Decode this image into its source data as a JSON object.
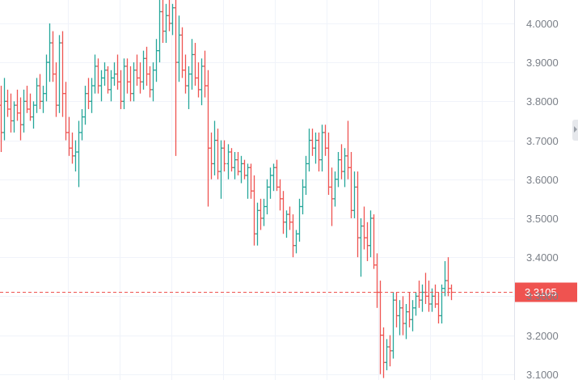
{
  "chart_data": {
    "type": "ohlc",
    "title": "",
    "xlabel": "",
    "ylabel": "",
    "ylim": [
      3.085,
      4.06
    ],
    "grid": true,
    "y_ticks": [
      "4.0000",
      "3.9000",
      "3.8000",
      "3.7000",
      "3.6000",
      "3.5000",
      "3.4000",
      "3.3000",
      "3.2000",
      "3.1000"
    ],
    "last_price": 3.3105,
    "last_price_label": "3.3105",
    "colors": {
      "up": "#26a69a",
      "down": "#ef5350",
      "grid": "#f0f3fa",
      "tick_text": "#7a7f87",
      "last_price": "#ef5350"
    },
    "ohlc": [
      [
        3.79,
        3.84,
        3.67,
        3.72
      ],
      [
        3.72,
        3.86,
        3.7,
        3.8
      ],
      [
        3.8,
        3.83,
        3.76,
        3.78
      ],
      [
        3.78,
        3.82,
        3.72,
        3.75
      ],
      [
        3.75,
        3.8,
        3.72,
        3.79
      ],
      [
        3.79,
        3.83,
        3.75,
        3.77
      ],
      [
        3.77,
        3.81,
        3.7,
        3.74
      ],
      [
        3.74,
        3.83,
        3.72,
        3.8
      ],
      [
        3.8,
        3.84,
        3.77,
        3.78
      ],
      [
        3.78,
        3.82,
        3.75,
        3.76
      ],
      [
        3.76,
        3.8,
        3.73,
        3.79
      ],
      [
        3.79,
        3.86,
        3.77,
        3.84
      ],
      [
        3.84,
        3.87,
        3.78,
        3.8
      ],
      [
        3.8,
        3.84,
        3.77,
        3.82
      ],
      [
        3.82,
        3.92,
        3.8,
        3.9
      ],
      [
        3.9,
        4.0,
        3.85,
        3.95
      ],
      [
        3.95,
        3.98,
        3.85,
        3.87
      ],
      [
        3.87,
        3.9,
        3.76,
        3.79
      ],
      [
        3.79,
        3.97,
        3.77,
        3.95
      ],
      [
        3.95,
        3.98,
        3.76,
        3.82
      ],
      [
        3.82,
        3.85,
        3.7,
        3.72
      ],
      [
        3.72,
        3.76,
        3.66,
        3.68
      ],
      [
        3.68,
        3.72,
        3.64,
        3.66
      ],
      [
        3.66,
        3.7,
        3.62,
        3.67
      ],
      [
        3.67,
        3.75,
        3.58,
        3.72
      ],
      [
        3.72,
        3.78,
        3.7,
        3.76
      ],
      [
        3.76,
        3.84,
        3.74,
        3.82
      ],
      [
        3.82,
        3.86,
        3.78,
        3.8
      ],
      [
        3.8,
        3.86,
        3.77,
        3.84
      ],
      [
        3.84,
        3.92,
        3.82,
        3.89
      ],
      [
        3.89,
        3.91,
        3.82,
        3.84
      ],
      [
        3.84,
        3.88,
        3.8,
        3.86
      ],
      [
        3.86,
        3.9,
        3.84,
        3.88
      ],
      [
        3.88,
        3.89,
        3.82,
        3.83
      ],
      [
        3.83,
        3.88,
        3.8,
        3.86
      ],
      [
        3.86,
        3.9,
        3.84,
        3.87
      ],
      [
        3.87,
        3.92,
        3.83,
        3.85
      ],
      [
        3.85,
        3.88,
        3.78,
        3.8
      ],
      [
        3.8,
        3.91,
        3.78,
        3.89
      ],
      [
        3.89,
        3.91,
        3.82,
        3.85
      ],
      [
        3.85,
        3.89,
        3.8,
        3.82
      ],
      [
        3.82,
        3.9,
        3.8,
        3.88
      ],
      [
        3.88,
        3.92,
        3.84,
        3.86
      ],
      [
        3.86,
        3.9,
        3.82,
        3.85
      ],
      [
        3.85,
        3.93,
        3.83,
        3.91
      ],
      [
        3.91,
        3.94,
        3.84,
        3.87
      ],
      [
        3.87,
        3.89,
        3.81,
        3.83
      ],
      [
        3.83,
        3.9,
        3.8,
        3.88
      ],
      [
        3.88,
        3.96,
        3.85,
        3.93
      ],
      [
        3.93,
        4.06,
        3.9,
        4.03
      ],
      [
        4.03,
        4.06,
        3.95,
        3.98
      ],
      [
        3.98,
        4.05,
        3.95,
        4.02
      ],
      [
        4.02,
        4.06,
        3.98,
        4.0
      ],
      [
        4.0,
        4.05,
        3.97,
        4.04
      ],
      [
        4.04,
        4.06,
        3.66,
        3.9
      ],
      [
        3.9,
        4.02,
        3.85,
        3.97
      ],
      [
        3.97,
        3.99,
        3.86,
        3.88
      ],
      [
        3.88,
        3.92,
        3.82,
        3.84
      ],
      [
        3.84,
        3.89,
        3.78,
        3.87
      ],
      [
        3.87,
        3.96,
        3.83,
        3.92
      ],
      [
        3.92,
        3.95,
        3.84,
        3.86
      ],
      [
        3.86,
        3.9,
        3.81,
        3.83
      ],
      [
        3.83,
        3.91,
        3.79,
        3.89
      ],
      [
        3.89,
        3.93,
        3.81,
        3.84
      ],
      [
        3.84,
        3.88,
        3.53,
        3.68
      ],
      [
        3.68,
        3.72,
        3.6,
        3.64
      ],
      [
        3.64,
        3.75,
        3.61,
        3.7
      ],
      [
        3.7,
        3.73,
        3.6,
        3.62
      ],
      [
        3.62,
        3.7,
        3.55,
        3.68
      ],
      [
        3.68,
        3.7,
        3.62,
        3.64
      ],
      [
        3.64,
        3.69,
        3.6,
        3.67
      ],
      [
        3.67,
        3.68,
        3.62,
        3.63
      ],
      [
        3.63,
        3.67,
        3.6,
        3.65
      ],
      [
        3.65,
        3.67,
        3.61,
        3.62
      ],
      [
        3.62,
        3.66,
        3.59,
        3.64
      ],
      [
        3.64,
        3.65,
        3.6,
        3.61
      ],
      [
        3.61,
        3.64,
        3.55,
        3.63
      ],
      [
        3.63,
        3.64,
        3.55,
        3.57
      ],
      [
        3.57,
        3.61,
        3.43,
        3.46
      ],
      [
        3.46,
        3.54,
        3.43,
        3.52
      ],
      [
        3.52,
        3.55,
        3.47,
        3.5
      ],
      [
        3.5,
        3.55,
        3.48,
        3.53
      ],
      [
        3.53,
        3.6,
        3.51,
        3.58
      ],
      [
        3.58,
        3.63,
        3.55,
        3.61
      ],
      [
        3.61,
        3.64,
        3.57,
        3.63
      ],
      [
        3.63,
        3.65,
        3.57,
        3.58
      ],
      [
        3.58,
        3.6,
        3.52,
        3.55
      ],
      [
        3.55,
        3.57,
        3.46,
        3.49
      ],
      [
        3.49,
        3.52,
        3.45,
        3.51
      ],
      [
        3.51,
        3.53,
        3.47,
        3.49
      ],
      [
        3.49,
        3.51,
        3.4,
        3.43
      ],
      [
        3.43,
        3.47,
        3.41,
        3.46
      ],
      [
        3.46,
        3.55,
        3.44,
        3.53
      ],
      [
        3.53,
        3.6,
        3.51,
        3.58
      ],
      [
        3.58,
        3.66,
        3.56,
        3.64
      ],
      [
        3.64,
        3.73,
        3.62,
        3.7
      ],
      [
        3.7,
        3.73,
        3.66,
        3.68
      ],
      [
        3.68,
        3.72,
        3.64,
        3.7
      ],
      [
        3.7,
        3.72,
        3.62,
        3.65
      ],
      [
        3.65,
        3.74,
        3.62,
        3.72
      ],
      [
        3.72,
        3.74,
        3.66,
        3.68
      ],
      [
        3.68,
        3.72,
        3.56,
        3.58
      ],
      [
        3.58,
        3.63,
        3.48,
        3.55
      ],
      [
        3.55,
        3.62,
        3.53,
        3.6
      ],
      [
        3.6,
        3.67,
        3.58,
        3.65
      ],
      [
        3.65,
        3.69,
        3.6,
        3.62
      ],
      [
        3.62,
        3.68,
        3.58,
        3.66
      ],
      [
        3.66,
        3.75,
        3.6,
        3.63
      ],
      [
        3.63,
        3.67,
        3.5,
        3.52
      ],
      [
        3.52,
        3.62,
        3.5,
        3.58
      ],
      [
        3.58,
        3.62,
        3.4,
        3.45
      ],
      [
        3.45,
        3.5,
        3.35,
        3.48
      ],
      [
        3.48,
        3.53,
        3.42,
        3.45
      ],
      [
        3.45,
        3.49,
        3.39,
        3.43
      ],
      [
        3.43,
        3.52,
        3.4,
        3.5
      ],
      [
        3.5,
        3.51,
        3.37,
        3.38
      ],
      [
        3.38,
        3.41,
        3.27,
        3.31
      ],
      [
        3.31,
        3.34,
        3.1,
        3.2
      ],
      [
        3.2,
        3.22,
        3.09,
        3.13
      ],
      [
        3.13,
        3.19,
        3.11,
        3.17
      ],
      [
        3.17,
        3.2,
        3.12,
        3.16
      ],
      [
        3.16,
        3.31,
        3.14,
        3.29
      ],
      [
        3.29,
        3.31,
        3.22,
        3.25
      ],
      [
        3.25,
        3.29,
        3.2,
        3.27
      ],
      [
        3.27,
        3.3,
        3.2,
        3.23
      ],
      [
        3.23,
        3.28,
        3.19,
        3.26
      ],
      [
        3.26,
        3.31,
        3.22,
        3.24
      ],
      [
        3.24,
        3.29,
        3.21,
        3.27
      ],
      [
        3.27,
        3.31,
        3.25,
        3.3
      ],
      [
        3.3,
        3.34,
        3.27,
        3.29
      ],
      [
        3.29,
        3.33,
        3.26,
        3.31
      ],
      [
        3.31,
        3.36,
        3.28,
        3.3
      ],
      [
        3.3,
        3.34,
        3.26,
        3.28
      ],
      [
        3.28,
        3.32,
        3.26,
        3.3
      ],
      [
        3.3,
        3.33,
        3.27,
        3.28
      ],
      [
        3.28,
        3.31,
        3.23,
        3.25
      ],
      [
        3.25,
        3.33,
        3.23,
        3.32
      ],
      [
        3.32,
        3.39,
        3.3,
        3.34
      ],
      [
        3.34,
        3.4,
        3.3,
        3.32
      ],
      [
        3.32,
        3.33,
        3.29,
        3.31
      ]
    ]
  }
}
